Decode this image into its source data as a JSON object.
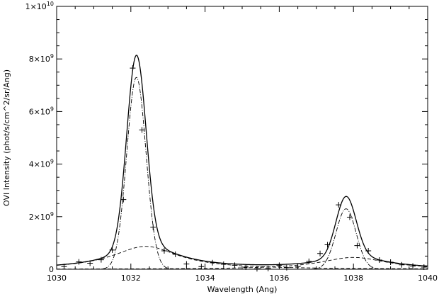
{
  "chart_data": {
    "type": "line",
    "xlabel": "Wavelength (Ang)",
    "ylabel": "OVI Intensity (phot/s/cm^2/sr/Ang)",
    "xlim": [
      1030,
      1040
    ],
    "ylim": [
      0,
      10000000000
    ],
    "x_ticks": [
      1030,
      1032,
      1034,
      1036,
      1038,
      1040
    ],
    "x_tick_labels": [
      "1030",
      "1032",
      "1034",
      "1036",
      "1038",
      "1040"
    ],
    "y_ticks": [
      {
        "value": 0,
        "mantissa": "0",
        "exponent": ""
      },
      {
        "value": 2000000000,
        "mantissa": "2×10",
        "exponent": "9"
      },
      {
        "value": 4000000000,
        "mantissa": "4×10",
        "exponent": "9"
      },
      {
        "value": 6000000000,
        "mantissa": "6×10",
        "exponent": "9"
      },
      {
        "value": 8000000000,
        "mantissa": "8×10",
        "exponent": "9"
      },
      {
        "value": 10000000000,
        "mantissa": "1×10",
        "exponent": "10"
      }
    ],
    "data_points": {
      "x": [
        1030.2,
        1030.6,
        1030.9,
        1031.2,
        1031.5,
        1031.8,
        1032.05,
        1032.3,
        1032.6,
        1032.9,
        1033.2,
        1033.5,
        1033.9,
        1034.2,
        1034.5,
        1034.8,
        1035.1,
        1035.4,
        1035.7,
        1036.0,
        1036.2,
        1036.5,
        1036.8,
        1037.1,
        1037.3,
        1037.6,
        1037.9,
        1038.1,
        1038.4,
        1038.7,
        1039.0,
        1039.3,
        1039.6,
        1039.9
      ],
      "y": [
        100000000,
        280000000,
        230000000,
        360000000,
        730000000,
        2650000000,
        7650000000,
        5300000000,
        1600000000,
        700000000,
        570000000,
        200000000,
        100000000,
        250000000,
        190000000,
        150000000,
        80000000,
        20000000,
        30000000,
        150000000,
        60000000,
        100000000,
        300000000,
        600000000,
        930000000,
        2450000000,
        1980000000,
        900000000,
        700000000,
        350000000,
        270000000,
        170000000,
        120000000,
        80000000
      ]
    },
    "components": {
      "narrow_1": {
        "center": 1032.15,
        "amplitude": 7300000000,
        "sigma": 0.26
      },
      "narrow_2": {
        "center": 1037.8,
        "amplitude": 2300000000,
        "sigma": 0.27
      },
      "broad_1": {
        "center": 1032.4,
        "amplitude": 870000000,
        "gamma": 1.1
      },
      "broad_2": {
        "center": 1038.0,
        "amplitude": 450000000,
        "gamma": 1.1
      }
    },
    "styles": {
      "total": "solid",
      "broad": "dashed",
      "narrow": "dash-dot"
    }
  }
}
